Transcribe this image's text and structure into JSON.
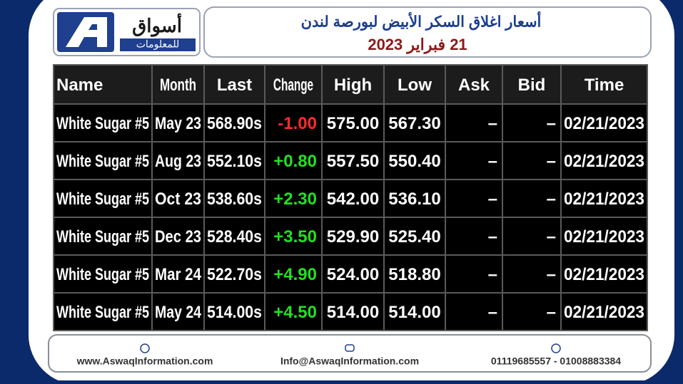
{
  "header": {
    "logo_name": "أسواق",
    "logo_subtitle": "للمعلومات",
    "title": "أسعار اغلاق السكر الأبيض لبورصة لندن",
    "date": "21 فبراير 2023"
  },
  "table": {
    "columns": [
      "Name",
      "Month",
      "Last",
      "Change",
      "High",
      "Low",
      "Ask",
      "Bid",
      "Time"
    ],
    "rows": [
      [
        "White Sugar #5",
        "May 23",
        "568.90s",
        "-1.00",
        "575.00",
        "567.30",
        "–",
        "–",
        "02/21/2023"
      ],
      [
        "White Sugar #5",
        "Aug 23",
        "552.10s",
        "+0.80",
        "557.50",
        "550.40",
        "–",
        "–",
        "02/21/2023"
      ],
      [
        "White Sugar #5",
        "Oct 23",
        "538.60s",
        "+2.30",
        "542.00",
        "536.10",
        "–",
        "–",
        "02/21/2023"
      ],
      [
        "White Sugar #5",
        "Dec 23",
        "528.40s",
        "+3.50",
        "529.90",
        "525.40",
        "–",
        "–",
        "02/21/2023"
      ],
      [
        "White Sugar #5",
        "Mar 24",
        "522.70s",
        "+4.90",
        "524.00",
        "518.80",
        "–",
        "–",
        "02/21/2023"
      ],
      [
        "White Sugar #5",
        "May 24",
        "514.00s",
        "+4.50",
        "514.00",
        "514.00",
        "–",
        "–",
        "02/21/2023"
      ]
    ]
  },
  "footer": {
    "website": "www.AswaqInformation.com",
    "email": "Info@AswaqInformation.com",
    "phones": "01119685557 - 01008883384"
  }
}
